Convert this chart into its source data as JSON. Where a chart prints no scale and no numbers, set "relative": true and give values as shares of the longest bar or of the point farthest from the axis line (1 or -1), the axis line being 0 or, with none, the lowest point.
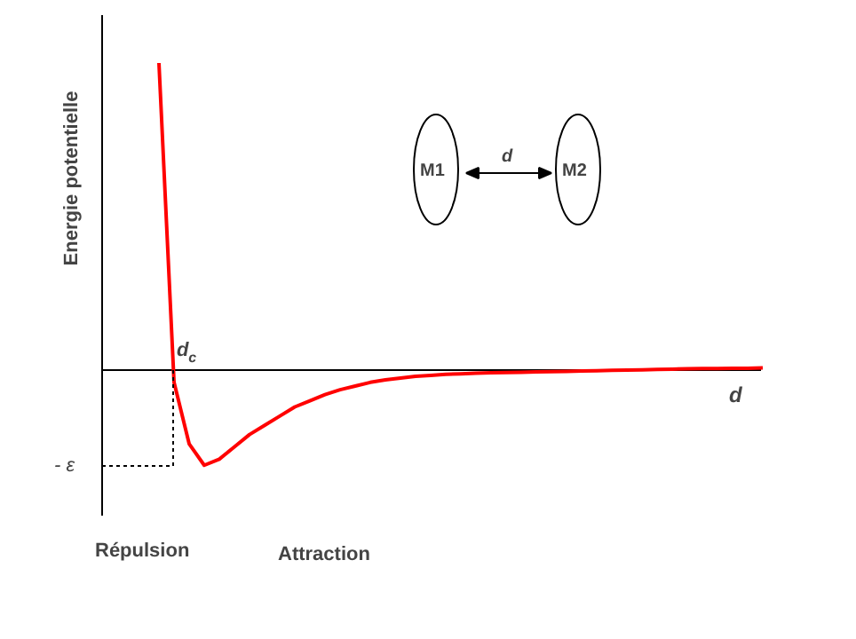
{
  "chart_data": {
    "type": "line",
    "relative": true,
    "xlabel": "d",
    "ylabel": "Energie potentielle",
    "annotations": [
      "M1",
      "d",
      "M2",
      "d$_{c}$",
      "- ε",
      "Répulsion",
      "Attraction"
    ],
    "categories": [
      null,
      null,
      null,
      null,
      null,
      null,
      null,
      null,
      null,
      null,
      null,
      null,
      null,
      null,
      null,
      null,
      null,
      null,
      null,
      null,
      null,
      null,
      null,
      null,
      null,
      null,
      null,
      null,
      null,
      null,
      null,
      null,
      null,
      null,
      null,
      null,
      null,
      null,
      null,
      null,
      null
    ],
    "series": [
      {
        "color": "#ff0000",
        "values": [
          1.0,
          -0.04,
          -0.24,
          -0.31,
          -0.29,
          -0.25,
          -0.21,
          -0.18,
          -0.15,
          -0.12,
          -0.1,
          -0.08,
          -0.064,
          -0.052,
          -0.04,
          -0.032,
          -0.026,
          -0.02,
          -0.017,
          -0.014,
          -0.012,
          -0.01,
          -0.009,
          -0.008,
          -0.007,
          -0.006,
          -0.005,
          -0.004,
          -0.003,
          -0.002,
          -0.001,
          0,
          0.001,
          0.002,
          0.003,
          0.004,
          0.005,
          0.005,
          0.006,
          0.006,
          0.007
        ]
      }
    ]
  }
}
